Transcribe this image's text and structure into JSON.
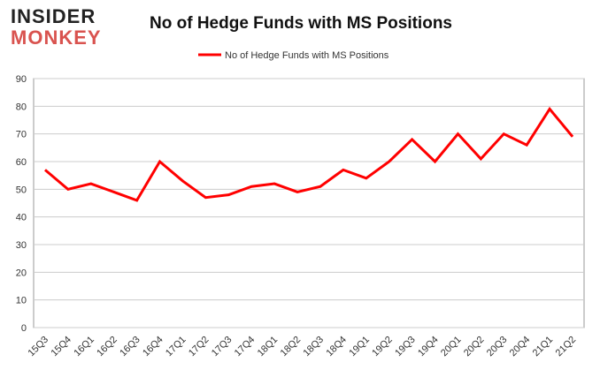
{
  "logo": {
    "line1": "INSIDER",
    "line2": "MONKEY"
  },
  "chart_data": {
    "type": "line",
    "title": "No of Hedge Funds with MS Positions",
    "categories": [
      "15Q3",
      "15Q4",
      "16Q1",
      "16Q2",
      "16Q3",
      "16Q4",
      "17Q1",
      "17Q2",
      "17Q3",
      "17Q4",
      "18Q1",
      "18Q2",
      "18Q3",
      "18Q4",
      "19Q1",
      "19Q2",
      "19Q3",
      "19Q4",
      "20Q1",
      "20Q2",
      "20Q3",
      "20Q4",
      "21Q1",
      "21Q2"
    ],
    "series": [
      {
        "name": "No of Hedge Funds with MS Positions",
        "color": "#ff0000",
        "values": [
          57,
          50,
          52,
          49,
          46,
          60,
          53,
          47,
          48,
          51,
          52,
          49,
          51,
          57,
          54,
          60,
          68,
          60,
          70,
          61,
          70,
          66,
          79,
          69
        ]
      }
    ],
    "ylim": [
      0,
      90
    ],
    "yticks": [
      0,
      10,
      20,
      30,
      40,
      50,
      60,
      70,
      80,
      90
    ],
    "grid": true,
    "legend": "top"
  }
}
